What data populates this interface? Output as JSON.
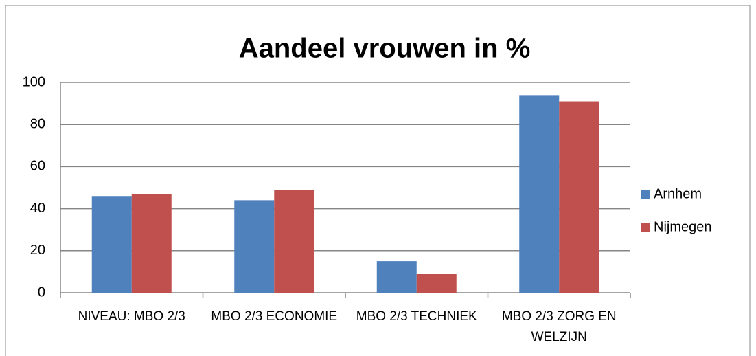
{
  "chart_data": {
    "type": "bar",
    "title": "Aandeel vrouwen in %",
    "categories": [
      "NIVEAU: MBO 2/3",
      "MBO 2/3 ECONOMIE",
      "MBO 2/3 TECHNIEK",
      "MBO 2/3 ZORG EN WELZIJN"
    ],
    "series": [
      {
        "name": "Arnhem",
        "color": "#4f81bd",
        "values": [
          46,
          44,
          15,
          94
        ]
      },
      {
        "name": "Nijmegen",
        "color": "#c0504d",
        "values": [
          47,
          49,
          9,
          91
        ]
      }
    ],
    "ylim": [
      0,
      100
    ],
    "yticks": [
      0,
      20,
      40,
      60,
      80,
      100
    ],
    "grid": true,
    "legend": "right"
  }
}
